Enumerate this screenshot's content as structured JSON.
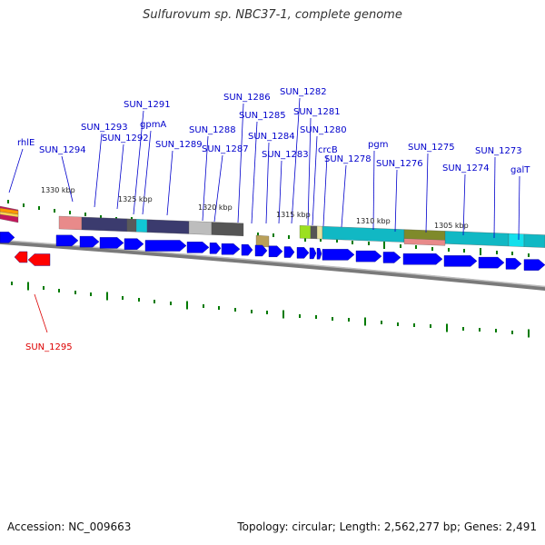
{
  "title": "Sulfurovum sp. NBC37-1, complete genome",
  "footer": {
    "accession": "Accession: NC_009663",
    "summary": "Topology: circular; Length: 2,562,277 bp; Genes: 2,491"
  },
  "colors": {
    "label_blue": "#0000cc",
    "label_red": "#dd0000",
    "gene_blue": "#0000ff",
    "gene_red": "#ff0000",
    "backbone": "#7a7a7a",
    "tick_green": "#007a00"
  },
  "scale_labels": [
    "1330 kbp",
    "1325 kbp",
    "1320 kbp",
    "1315 kbp",
    "1310 kbp",
    "1305 kbp"
  ],
  "gene_labels": [
    {
      "name": "rhlE",
      "color": "blue"
    },
    {
      "name": "SUN_1294",
      "color": "blue"
    },
    {
      "name": "SUN_1293",
      "color": "blue"
    },
    {
      "name": "SUN_1292",
      "color": "blue"
    },
    {
      "name": "SUN_1291",
      "color": "blue"
    },
    {
      "name": "gpmA",
      "color": "blue"
    },
    {
      "name": "SUN_1289",
      "color": "blue"
    },
    {
      "name": "SUN_1288",
      "color": "blue"
    },
    {
      "name": "SUN_1287",
      "color": "blue"
    },
    {
      "name": "SUN_1286",
      "color": "blue"
    },
    {
      "name": "SUN_1285",
      "color": "blue"
    },
    {
      "name": "SUN_1284",
      "color": "blue"
    },
    {
      "name": "SUN_1283",
      "color": "blue"
    },
    {
      "name": "SUN_1282",
      "color": "blue"
    },
    {
      "name": "SUN_1281",
      "color": "blue"
    },
    {
      "name": "SUN_1280",
      "color": "blue"
    },
    {
      "name": "crcB",
      "color": "blue"
    },
    {
      "name": "SUN_1278",
      "color": "blue"
    },
    {
      "name": "pgm",
      "color": "blue"
    },
    {
      "name": "SUN_1276",
      "color": "blue"
    },
    {
      "name": "SUN_1275",
      "color": "blue"
    },
    {
      "name": "SUN_1274",
      "color": "blue"
    },
    {
      "name": "SUN_1273",
      "color": "blue"
    },
    {
      "name": "galT",
      "color": "blue"
    },
    {
      "name": "SUN_1295",
      "color": "red"
    }
  ]
}
